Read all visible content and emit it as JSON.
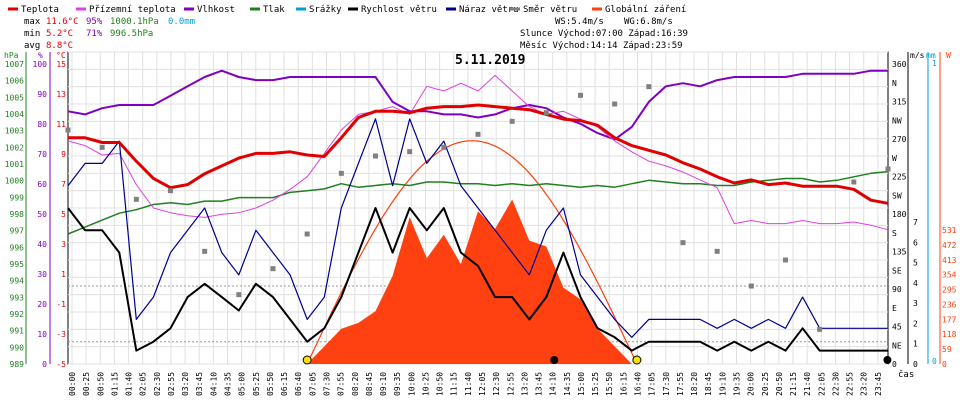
{
  "legend": [
    {
      "label": "Teplota",
      "color": "#e00000"
    },
    {
      "label": "Přízemní teplota",
      "color": "#e040e0"
    },
    {
      "label": "Vlhkost",
      "color": "#8000c0"
    },
    {
      "label": "Tlak",
      "color": "#208020"
    },
    {
      "label": "Srážky",
      "color": "#00a0d0"
    },
    {
      "label": "Rychlost větru",
      "color": "#000000"
    },
    {
      "label": "Náraz větru",
      "color": "#000090"
    },
    {
      "label": "Směr větru",
      "color": "#808080"
    },
    {
      "label": "Globální záření",
      "color": "#ff4010"
    }
  ],
  "stats": {
    "max_label": "max",
    "max_temp": "11.6°C",
    "max_hum": "95%",
    "max_press": "1000.1hPa",
    "max_rain": "0.0mm",
    "min_label": "min",
    "min_temp": "5.2°C",
    "min_hum": "71%",
    "min_press": "996.5hPa",
    "avg_label": "avg",
    "avg_temp": "8.8°C"
  },
  "info": {
    "ws": "WS:5.4m/s",
    "wg": "WG:6.8m/s",
    "sun": "Slunce Východ:07:00  Západ:16:39",
    "moon": "Měsíc  Východ:14:14  Západ:23:59"
  },
  "chart_data": {
    "type": "line",
    "title": "5.11.2019",
    "xlabel": "čas",
    "x_ticks": [
      "00:00",
      "00:25",
      "00:50",
      "01:15",
      "01:40",
      "02:05",
      "02:30",
      "02:55",
      "03:20",
      "03:45",
      "04:10",
      "04:35",
      "05:00",
      "05:25",
      "05:50",
      "06:15",
      "06:40",
      "07:05",
      "07:30",
      "07:55",
      "08:20",
      "08:45",
      "09:10",
      "09:35",
      "10:00",
      "10:25",
      "10:50",
      "11:15",
      "11:40",
      "12:05",
      "12:30",
      "12:55",
      "13:20",
      "13:45",
      "14:10",
      "14:35",
      "15:00",
      "15:25",
      "15:50",
      "16:15",
      "16:40",
      "17:05",
      "17:30",
      "17:55",
      "18:20",
      "18:45",
      "19:10",
      "19:35",
      "20:00",
      "20:25",
      "20:50",
      "21:15",
      "21:40",
      "22:05",
      "22:30",
      "22:55",
      "23:20",
      "23:45"
    ],
    "axes": {
      "pressure": {
        "unit": "hPa",
        "ticks": [
          "1007",
          "1006",
          "1005",
          "1004",
          "1003",
          "1002",
          "1001",
          "1000",
          "999",
          "998",
          "997",
          "996",
          "995",
          "994",
          "993",
          "992",
          "991",
          "990",
          "989"
        ]
      },
      "humidity": {
        "unit": "%",
        "ticks": [
          "100",
          "90",
          "80",
          "70",
          "60",
          "50",
          "40",
          "30",
          "20",
          "10",
          "0"
        ]
      },
      "temperature": {
        "unit": "°C",
        "ticks": [
          "15",
          "13",
          "11",
          "9",
          "7",
          "5",
          "3",
          "1",
          "-1",
          "-3",
          "-5"
        ]
      },
      "wind_dir": {
        "ticks": [
          "360",
          "N",
          "315",
          "NW",
          "270",
          "W",
          "225",
          "SW",
          "180",
          "S",
          "135",
          "SE",
          "90",
          "E",
          "45",
          "NE",
          "0"
        ]
      },
      "wind_speed": {
        "unit": "m/s",
        "ticks": [
          "7",
          "6",
          "5",
          "4",
          "3",
          "2",
          "1",
          "0"
        ]
      },
      "rain": {
        "unit": "mm",
        "ticks": [
          "1",
          "0"
        ]
      },
      "radiation": {
        "unit": "W",
        "ticks": [
          "531",
          "472",
          "413",
          "354",
          "295",
          "236",
          "177",
          "118",
          "59",
          "0"
        ]
      }
    },
    "series": [
      {
        "name": "Teplota",
        "unit": "°C",
        "x": [
          0,
          0.5,
          1,
          1.5,
          2,
          2.5,
          3,
          3.5,
          4,
          4.5,
          5,
          5.5,
          6,
          6.5,
          7,
          7.5,
          8,
          8.5,
          9,
          9.5,
          10,
          10.5,
          11,
          11.5,
          12,
          12.5,
          13,
          13.5,
          14,
          14.5,
          15,
          15.5,
          16,
          16.5,
          17,
          17.5,
          18,
          18.5,
          19,
          19.5,
          20,
          20.5,
          21,
          21.5,
          22,
          22.5,
          23,
          23.5,
          24
        ],
        "values": [
          9.5,
          9.5,
          9.2,
          9.2,
          8.0,
          6.9,
          6.3,
          6.5,
          7.2,
          7.7,
          8.2,
          8.5,
          8.5,
          8.6,
          8.4,
          8.3,
          9.5,
          10.8,
          11.2,
          11.2,
          11.1,
          11.4,
          11.5,
          11.5,
          11.6,
          11.5,
          11.4,
          11.3,
          11.0,
          10.7,
          10.6,
          10.3,
          9.5,
          9.0,
          8.7,
          8.4,
          7.9,
          7.5,
          7.0,
          6.6,
          6.8,
          6.5,
          6.6,
          6.4,
          6.4,
          6.4,
          6.2,
          5.5,
          5.3
        ]
      },
      {
        "name": "Přízemní teplota",
        "unit": "°C",
        "x": [
          0,
          0.5,
          1,
          1.5,
          2,
          2.5,
          3,
          3.5,
          4,
          4.5,
          5,
          5.5,
          6,
          6.5,
          7,
          7.5,
          8,
          8.5,
          9,
          9.5,
          10,
          10.5,
          11,
          11.5,
          12,
          12.5,
          13,
          13.5,
          14,
          14.5,
          15,
          15.5,
          16,
          16.5,
          17,
          17.5,
          18,
          18.5,
          19,
          19.5,
          20,
          20.5,
          21,
          21.5,
          22,
          22.5,
          23,
          23.5,
          24
        ],
        "values": [
          9.3,
          9.0,
          8.4,
          8.5,
          6.5,
          5.0,
          4.7,
          4.5,
          4.4,
          4.6,
          4.7,
          5.0,
          5.5,
          6.2,
          7.0,
          8.5,
          10.0,
          11.0,
          11.2,
          11.5,
          11.0,
          12.8,
          12.5,
          13.0,
          12.5,
          13.5,
          12.5,
          11.5,
          11.0,
          11.2,
          10.7,
          10.2,
          9.3,
          8.6,
          8.0,
          7.7,
          7.3,
          6.8,
          6.3,
          4.0,
          4.2,
          4.0,
          4.0,
          4.2,
          4.0,
          4.0,
          4.1,
          3.9,
          3.6
        ]
      },
      {
        "name": "Vlhkost",
        "unit": "%",
        "x": [
          0,
          0.5,
          1,
          1.5,
          2,
          2.5,
          3,
          3.5,
          4,
          4.5,
          5,
          5.5,
          6,
          6.5,
          7,
          7.5,
          8,
          8.5,
          9,
          9.5,
          10,
          10.5,
          11,
          11.5,
          12,
          12.5,
          13,
          13.5,
          14,
          14.5,
          15,
          15.5,
          16,
          16.5,
          17,
          17.5,
          18,
          18.5,
          19,
          19.5,
          20,
          20.5,
          21,
          21.5,
          22,
          22.5,
          23,
          23.5,
          24
        ],
        "values": [
          81,
          80,
          82,
          83,
          83,
          83,
          86,
          89,
          92,
          94,
          92,
          91,
          91,
          92,
          92,
          92,
          92,
          92,
          92,
          84,
          81,
          81,
          80,
          80,
          79,
          80,
          82,
          83,
          82,
          79,
          77,
          74,
          72,
          76,
          84,
          89,
          90,
          89,
          91,
          92,
          92,
          92,
          92,
          93,
          93,
          93,
          93,
          94,
          94
        ]
      },
      {
        "name": "Tlak",
        "unit": "hPa",
        "x": [
          0,
          0.5,
          1,
          1.5,
          2,
          2.5,
          3,
          3.5,
          4,
          4.5,
          5,
          5.5,
          6,
          6.5,
          7,
          7.5,
          8,
          8.5,
          9,
          9.5,
          10,
          10.5,
          11,
          11.5,
          12,
          12.5,
          13,
          13.5,
          14,
          14.5,
          15,
          15.5,
          16,
          16.5,
          17,
          17.5,
          18,
          18.5,
          19,
          19.5,
          20,
          20.5,
          21,
          21.5,
          22,
          22.5,
          23,
          23.5,
          24
        ],
        "values": [
          996.5,
          996.9,
          997.3,
          997.7,
          997.9,
          998.2,
          998.3,
          998.2,
          998.4,
          998.4,
          998.6,
          998.6,
          998.6,
          998.9,
          999.0,
          999.1,
          999.4,
          999.2,
          999.3,
          999.4,
          999.3,
          999.5,
          999.5,
          999.4,
          999.4,
          999.3,
          999.4,
          999.3,
          999.4,
          999.3,
          999.2,
          999.3,
          999.2,
          999.4,
          999.6,
          999.5,
          999.4,
          999.4,
          999.3,
          999.3,
          999.5,
          999.6,
          999.7,
          999.7,
          999.5,
          999.6,
          999.8,
          1000.0,
          1000.1
        ]
      },
      {
        "name": "Rychlost větru",
        "unit": "m/s",
        "x": [
          0,
          0.5,
          1,
          1.5,
          2,
          2.5,
          3,
          3.5,
          4,
          4.5,
          5,
          5.5,
          6,
          6.5,
          7,
          7.5,
          8,
          8.5,
          9,
          9.5,
          10,
          10.5,
          11,
          11.5,
          12,
          12.5,
          13,
          13.5,
          14,
          14.5,
          15,
          15.5,
          16,
          16.5,
          17,
          17.5,
          18,
          18.5,
          19,
          19.5,
          20,
          20.5,
          21,
          21.5,
          22,
          22.5,
          23,
          23.5,
          24
        ],
        "values": [
          3.5,
          3.0,
          3.0,
          2.5,
          0.3,
          0.5,
          0.8,
          1.5,
          1.8,
          1.5,
          1.2,
          1.8,
          1.5,
          1.0,
          0.5,
          0.8,
          1.5,
          2.5,
          3.5,
          2.5,
          3.5,
          3.0,
          3.5,
          2.5,
          2.2,
          1.5,
          1.5,
          1.0,
          1.5,
          2.5,
          1.5,
          0.8,
          0.6,
          0.3,
          0.5,
          0.5,
          0.5,
          0.5,
          0.3,
          0.5,
          0.3,
          0.5,
          0.3,
          0.8,
          0.3,
          0.3,
          0.3,
          0.3,
          0.3
        ]
      },
      {
        "name": "Náraz větru",
        "unit": "m/s",
        "x": [
          0,
          0.5,
          1,
          1.5,
          2,
          2.5,
          3,
          3.5,
          4,
          4.5,
          5,
          5.5,
          6,
          6.5,
          7,
          7.5,
          8,
          8.5,
          9,
          9.5,
          10,
          10.5,
          11,
          11.5,
          12,
          12.5,
          13,
          13.5,
          14,
          14.5,
          15,
          15.5,
          16,
          16.5,
          17,
          17.5,
          18,
          18.5,
          19,
          19.5,
          20,
          20.5,
          21,
          21.5,
          22,
          22.5,
          23,
          23.5,
          24
        ],
        "values": [
          4.0,
          4.5,
          4.5,
          5.0,
          1.0,
          1.5,
          2.5,
          3.0,
          3.5,
          2.5,
          2.0,
          3.0,
          2.5,
          2.0,
          1.0,
          1.5,
          3.5,
          4.5,
          5.5,
          4.0,
          5.5,
          4.5,
          5.0,
          4.0,
          3.5,
          3.0,
          2.5,
          2.0,
          3.0,
          3.5,
          2.0,
          1.5,
          1.0,
          0.6,
          1.0,
          1.0,
          1.0,
          1.0,
          0.8,
          1.0,
          0.8,
          1.0,
          0.8,
          1.5,
          0.8,
          0.8,
          0.8,
          0.8,
          0.8
        ]
      },
      {
        "name": "Směr větru",
        "unit": "°",
        "x": [
          0,
          1,
          2,
          3,
          4,
          5,
          6,
          7,
          8,
          9,
          10,
          11,
          12,
          13,
          14,
          15,
          16,
          17,
          18,
          19,
          20,
          21,
          22,
          23,
          24
        ],
        "values": [
          270,
          250,
          190,
          200,
          130,
          80,
          110,
          150,
          220,
          240,
          245,
          250,
          265,
          280,
          290,
          310,
          300,
          320,
          140,
          130,
          90,
          120,
          40,
          210,
          225
        ]
      },
      {
        "name": "Globální záření",
        "unit": "W/m²",
        "x": [
          7.0,
          7.5,
          8,
          8.5,
          9,
          9.5,
          10,
          10.5,
          11,
          11.5,
          12,
          12.5,
          13,
          13.5,
          14,
          14.5,
          15,
          15.5,
          16,
          16.5
        ],
        "values": [
          0,
          30,
          60,
          70,
          90,
          150,
          250,
          180,
          220,
          170,
          260,
          230,
          280,
          210,
          200,
          130,
          110,
          60,
          30,
          0
        ]
      }
    ],
    "sun_markers": {
      "sunrise": "07:00",
      "sunset": "16:39"
    },
    "moon_markers": {
      "rise": "14:14",
      "set": "23:59"
    },
    "grid": true
  }
}
